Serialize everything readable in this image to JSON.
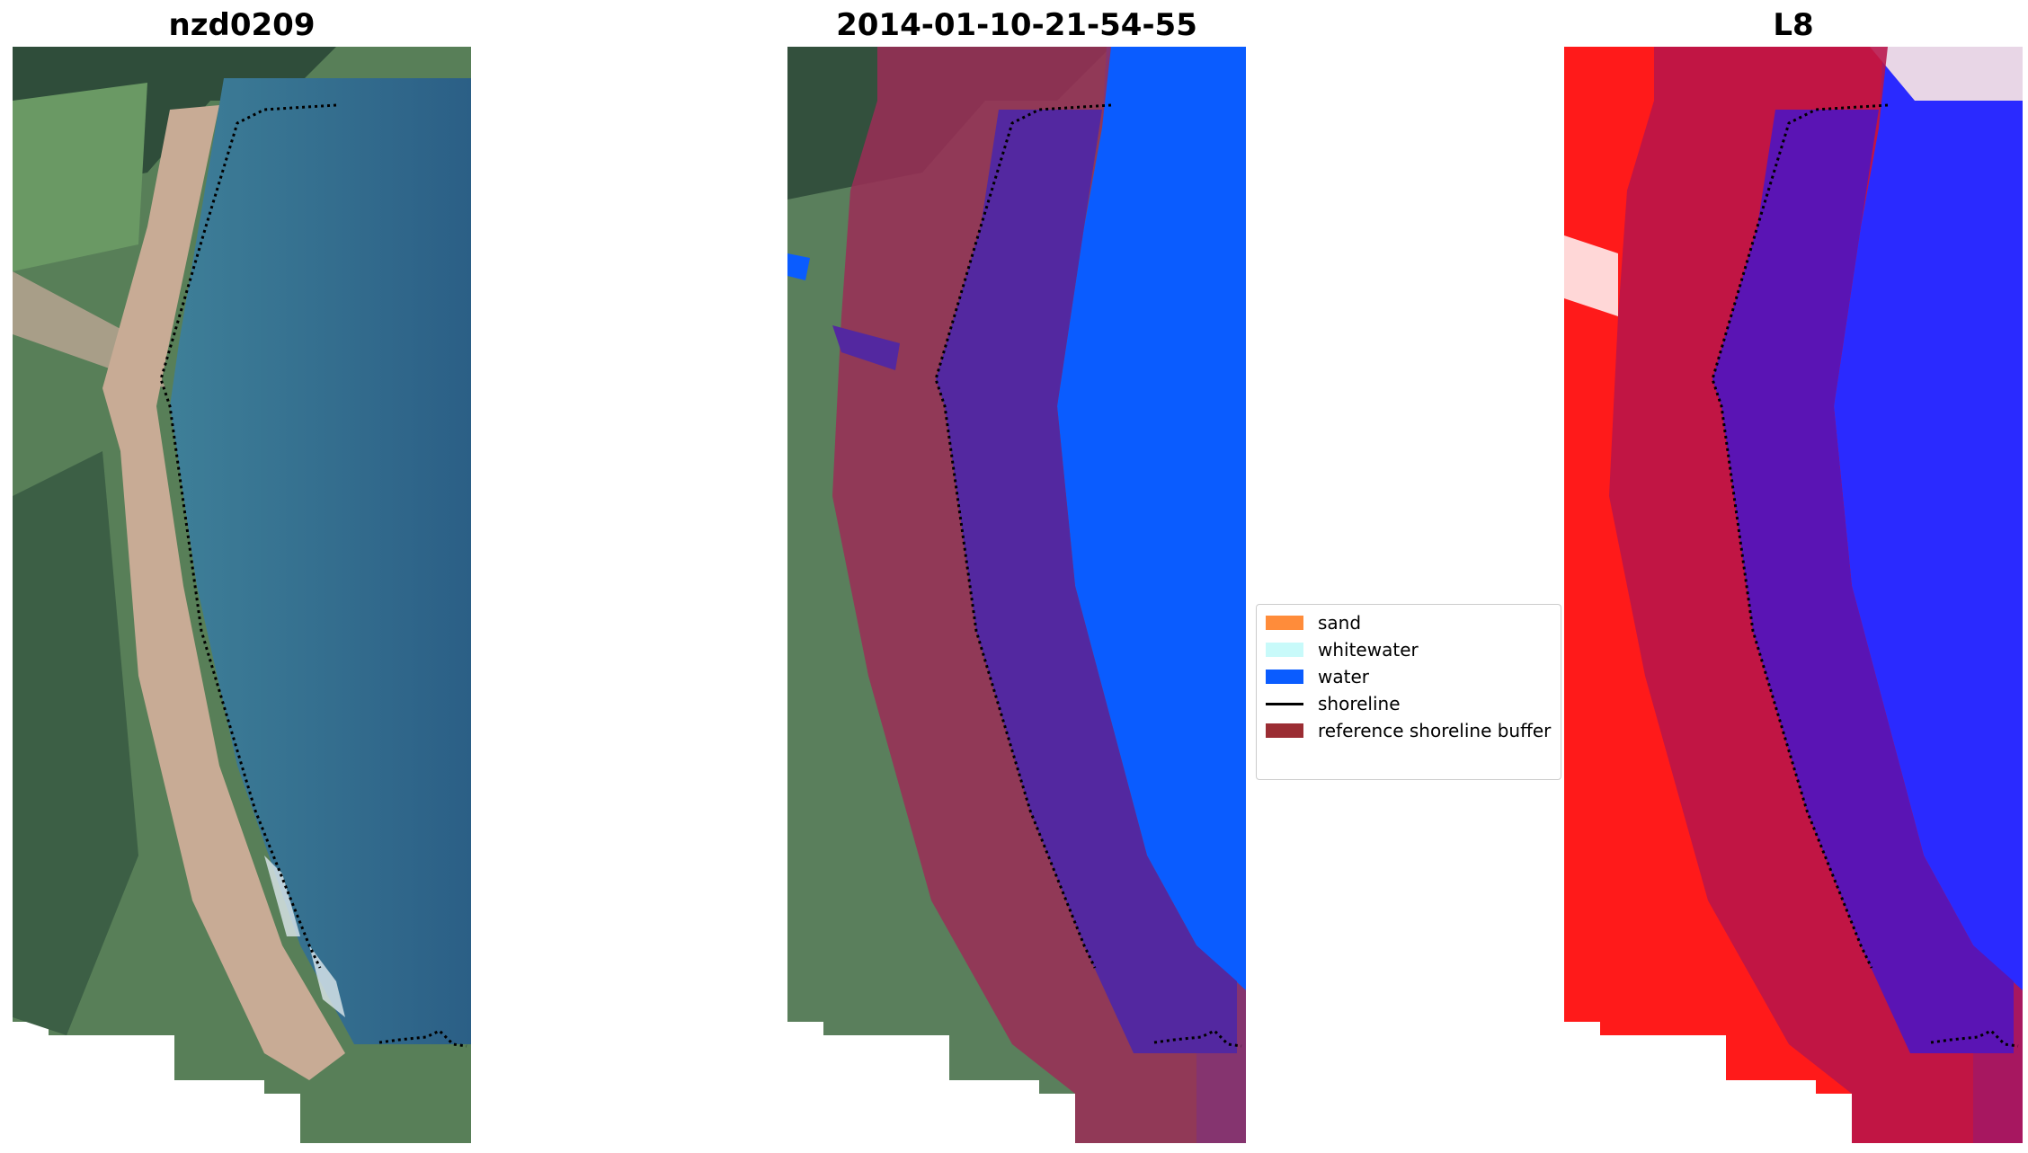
{
  "panels": [
    {
      "title": "nzd0209"
    },
    {
      "title": "2014-01-10-21-54-55"
    },
    {
      "title": "L8"
    }
  ],
  "legend": {
    "items": [
      {
        "label": "sand",
        "color": "#ff8c3a",
        "kind": "patch"
      },
      {
        "label": "whitewater",
        "color": "#c8fafa",
        "kind": "patch"
      },
      {
        "label": "water",
        "color": "#0a5cff",
        "kind": "patch"
      },
      {
        "label": "shoreline",
        "color": "#000000",
        "kind": "line"
      },
      {
        "label": "reference shoreline buffer",
        "color": "#9b2d33",
        "kind": "patch"
      }
    ]
  },
  "colors": {
    "land_green": "#4f7a55",
    "beach_sand": "#c9ac96",
    "sea_blue": "#2f6a8e",
    "buffer_overlay": "#9b2d56",
    "water_class": "#0a5cff",
    "index_red": "#ff1a1a",
    "index_blue": "#2a2aff"
  }
}
